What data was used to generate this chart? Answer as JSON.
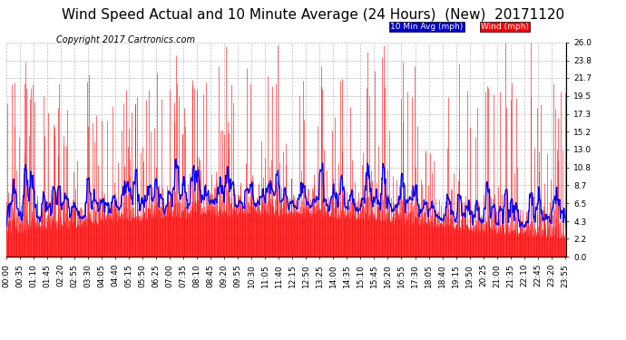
{
  "title": "Wind Speed Actual and 10 Minute Average (24 Hours)  (New)  20171120",
  "copyright": "Copyright 2017 Cartronics.com",
  "legend_10min_label": "10 Min Avg (mph)",
  "legend_wind_label": "Wind (mph)",
  "legend_10min_bg": "#0000cc",
  "legend_wind_bg": "#ff0000",
  "legend_text_color": "#ffffff",
  "yticks": [
    0.0,
    2.2,
    4.3,
    6.5,
    8.7,
    10.8,
    13.0,
    15.2,
    17.3,
    19.5,
    21.7,
    23.8,
    26.0
  ],
  "ymin": 0.0,
  "ymax": 26.0,
  "background_color": "#ffffff",
  "plot_bg_color": "#ffffff",
  "grid_color": "#bbbbbb",
  "wind_color": "#ff0000",
  "avg_color": "#0000ff",
  "title_fontsize": 11,
  "axis_fontsize": 6.5,
  "copyright_fontsize": 7,
  "num_points": 1440,
  "xtick_interval": 35,
  "seed": 12345
}
